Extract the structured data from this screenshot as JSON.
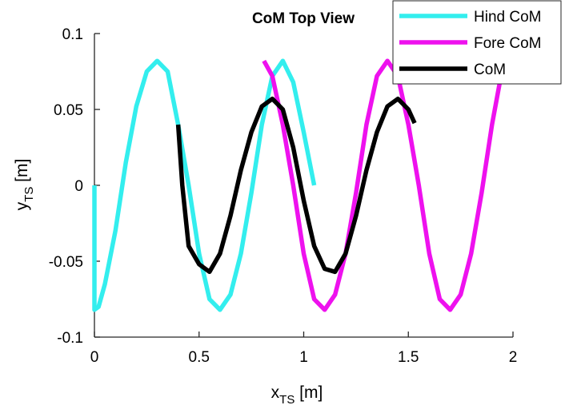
{
  "chart_data": {
    "type": "line",
    "title": "CoM Top View",
    "xlabel": {
      "main": "x",
      "sub": "TS",
      "unit": " [m]"
    },
    "ylabel": {
      "main": "y",
      "sub": "TS",
      "unit": " [m]"
    },
    "xlim": [
      0,
      2
    ],
    "ylim": [
      -0.1,
      0.1
    ],
    "grid": false,
    "legend_position": "top-right",
    "x_ticks": [
      {
        "value": 0,
        "label": "0"
      },
      {
        "value": 0.5,
        "label": "0.5"
      },
      {
        "value": 1,
        "label": "1"
      },
      {
        "value": 1.5,
        "label": "1.5"
      },
      {
        "value": 2,
        "label": "2"
      }
    ],
    "y_ticks": [
      {
        "value": -0.1,
        "label": "-0.1"
      },
      {
        "value": -0.05,
        "label": "-0.05"
      },
      {
        "value": 0,
        "label": "0"
      },
      {
        "value": 0.05,
        "label": "0.05"
      },
      {
        "value": 0.1,
        "label": "0.1"
      }
    ],
    "series": [
      {
        "name": "Hind CoM",
        "color": "#33eeee",
        "points": [
          [
            0.0,
            0.0
          ],
          [
            0.0,
            -0.082
          ],
          [
            0.02,
            -0.08
          ],
          [
            0.05,
            -0.065
          ],
          [
            0.1,
            -0.03
          ],
          [
            0.15,
            0.015
          ],
          [
            0.2,
            0.052
          ],
          [
            0.25,
            0.075
          ],
          [
            0.3,
            0.082
          ],
          [
            0.35,
            0.075
          ],
          [
            0.4,
            0.04
          ],
          [
            0.45,
            0.0
          ],
          [
            0.5,
            -0.045
          ],
          [
            0.55,
            -0.075
          ],
          [
            0.6,
            -0.082
          ],
          [
            0.65,
            -0.072
          ],
          [
            0.7,
            -0.045
          ],
          [
            0.75,
            -0.005
          ],
          [
            0.8,
            0.04
          ],
          [
            0.85,
            0.072
          ],
          [
            0.9,
            0.082
          ],
          [
            0.95,
            0.068
          ],
          [
            1.0,
            0.035
          ],
          [
            1.05,
            0.0
          ]
        ]
      },
      {
        "name": "Fore CoM",
        "color": "#ee11ee",
        "points": [
          [
            0.81,
            0.082
          ],
          [
            0.85,
            0.072
          ],
          [
            0.9,
            0.04
          ],
          [
            0.95,
            0.0
          ],
          [
            1.0,
            -0.045
          ],
          [
            1.05,
            -0.075
          ],
          [
            1.1,
            -0.082
          ],
          [
            1.15,
            -0.072
          ],
          [
            1.2,
            -0.045
          ],
          [
            1.25,
            -0.005
          ],
          [
            1.3,
            0.04
          ],
          [
            1.35,
            0.072
          ],
          [
            1.4,
            0.082
          ],
          [
            1.45,
            0.072
          ],
          [
            1.5,
            0.04
          ],
          [
            1.55,
            0.0
          ],
          [
            1.6,
            -0.045
          ],
          [
            1.65,
            -0.075
          ],
          [
            1.7,
            -0.082
          ],
          [
            1.75,
            -0.072
          ],
          [
            1.8,
            -0.045
          ],
          [
            1.85,
            -0.005
          ],
          [
            1.9,
            0.04
          ],
          [
            1.94,
            0.07
          ],
          [
            1.96,
            0.078
          ]
        ]
      },
      {
        "name": "CoM",
        "color": "#000000",
        "points": [
          [
            0.4,
            0.04
          ],
          [
            0.42,
            0.0
          ],
          [
            0.45,
            -0.04
          ],
          [
            0.5,
            -0.052
          ],
          [
            0.55,
            -0.057
          ],
          [
            0.6,
            -0.045
          ],
          [
            0.65,
            -0.02
          ],
          [
            0.7,
            0.01
          ],
          [
            0.75,
            0.035
          ],
          [
            0.8,
            0.052
          ],
          [
            0.85,
            0.057
          ],
          [
            0.9,
            0.05
          ],
          [
            0.95,
            0.025
          ],
          [
            1.0,
            -0.01
          ],
          [
            1.05,
            -0.04
          ],
          [
            1.1,
            -0.055
          ],
          [
            1.15,
            -0.057
          ],
          [
            1.2,
            -0.045
          ],
          [
            1.25,
            -0.02
          ],
          [
            1.3,
            0.01
          ],
          [
            1.35,
            0.035
          ],
          [
            1.4,
            0.052
          ],
          [
            1.45,
            0.057
          ],
          [
            1.5,
            0.05
          ],
          [
            1.53,
            0.041
          ]
        ]
      }
    ]
  }
}
